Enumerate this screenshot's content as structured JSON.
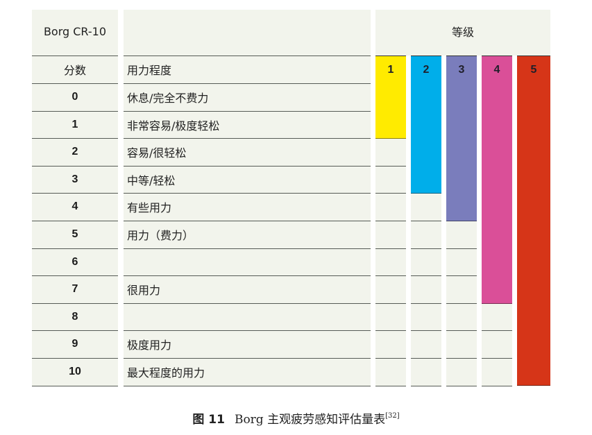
{
  "table": {
    "header": {
      "scale_name": "Borg CR-10",
      "grade_title": "等级",
      "score_label": "分数",
      "effort_label": "用力程度"
    },
    "rows": [
      {
        "score": "0",
        "description": "休息/完全不费力"
      },
      {
        "score": "1",
        "description": "非常容易/极度轻松"
      },
      {
        "score": "2",
        "description": "容易/很轻松"
      },
      {
        "score": "3",
        "description": "中等/轻松"
      },
      {
        "score": "4",
        "description": "有些用力"
      },
      {
        "score": "5",
        "description": "用力（费力）"
      },
      {
        "score": "6",
        "description": ""
      },
      {
        "score": "7",
        "description": "很用力"
      },
      {
        "score": "8",
        "description": ""
      },
      {
        "score": "9",
        "description": "极度用力"
      },
      {
        "score": "10",
        "description": "最大程度的用力"
      }
    ],
    "grades": [
      {
        "label": "1",
        "color": "#FFEB00",
        "covers_scores": "0-1"
      },
      {
        "label": "2",
        "color": "#00AEEA",
        "covers_scores": "0-3"
      },
      {
        "label": "3",
        "color": "#7A7DBC",
        "covers_scores": "0-4"
      },
      {
        "label": "4",
        "color": "#DA4F98",
        "covers_scores": "0-7"
      },
      {
        "label": "5",
        "color": "#D63518",
        "covers_scores": "0-10"
      }
    ],
    "colors": {
      "cell_background": "#F2F4EC",
      "rule_line": "#555A55"
    }
  },
  "caption": {
    "figure_number": "图 11",
    "text": "Borg 主观疲劳感知评估量表",
    "reference": "[32]"
  }
}
